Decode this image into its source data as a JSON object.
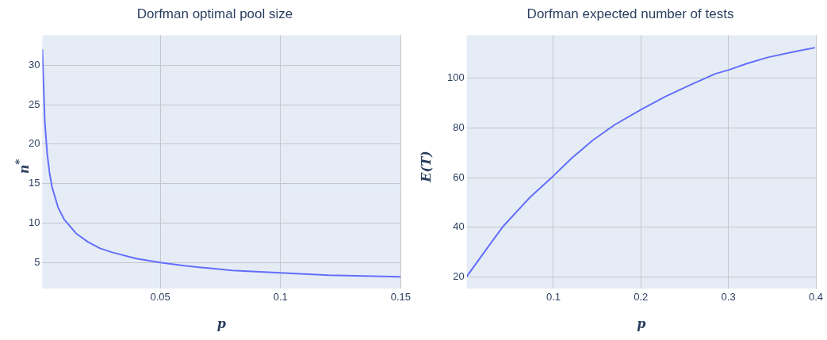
{
  "chart_data": [
    {
      "type": "line",
      "title": "Dorfman optimal pool size",
      "xlabel": "p",
      "ylabel": "n$^{*}$",
      "grid": true,
      "xlim": [
        0.001,
        0.15
      ],
      "ylim": [
        1.7,
        33.8
      ],
      "xticks": [
        0.05,
        0.1,
        0.15
      ],
      "yticks": [
        5,
        10,
        15,
        20,
        25,
        30
      ],
      "x": [
        0.001,
        0.002,
        0.003,
        0.004,
        0.005,
        0.0075,
        0.01,
        0.015,
        0.02,
        0.025,
        0.03,
        0.04,
        0.05,
        0.06,
        0.07,
        0.08,
        0.1,
        0.12,
        0.15
      ],
      "series": [
        {
          "color": "#636efa",
          "values": [
            32,
            22.9,
            18.8,
            16.3,
            14.6,
            12.0,
            10.5,
            8.7,
            7.6,
            6.8,
            6.3,
            5.5,
            5.0,
            4.6,
            4.3,
            4.0,
            3.7,
            3.4,
            3.2
          ]
        }
      ]
    },
    {
      "type": "line",
      "title": "Dorfman expected number of tests",
      "xlabel": "p",
      "ylabel": "E(T)",
      "grid": true,
      "xlim": [
        0.001,
        0.4
      ],
      "ylim": [
        15.4,
        117.2
      ],
      "xticks": [
        0.1,
        0.2,
        0.3,
        0.4
      ],
      "yticks": [
        20,
        40,
        60,
        80,
        100
      ],
      "x": [
        0.001,
        0.024,
        0.042,
        0.073,
        0.1,
        0.121,
        0.145,
        0.17,
        0.2,
        0.227,
        0.255,
        0.285,
        0.3,
        0.321,
        0.345,
        0.373,
        0.399
      ],
      "series": [
        {
          "color": "#636efa",
          "values": [
            20.3,
            31.5,
            40.2,
            52,
            60.7,
            67.8,
            75,
            81.2,
            87.3,
            92.4,
            97,
            101.7,
            103.2,
            105.8,
            108.3,
            110.4,
            112.2
          ]
        }
      ]
    }
  ]
}
